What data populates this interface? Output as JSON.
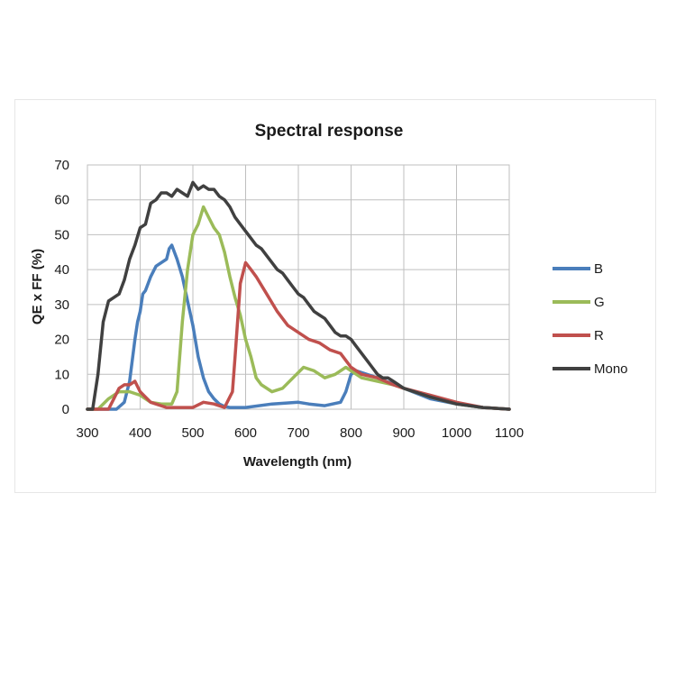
{
  "chart_data": {
    "type": "line",
    "title": "Spectral response",
    "xlabel": "Wavelength (nm)",
    "ylabel": "QE x FF (%)",
    "xlim": [
      300,
      1100
    ],
    "ylim": [
      0,
      70
    ],
    "xticks": [
      300,
      400,
      500,
      600,
      700,
      800,
      900,
      1000,
      1100
    ],
    "yticks": [
      0,
      10,
      20,
      30,
      40,
      50,
      60,
      70
    ],
    "grid": true,
    "legend_position": "right",
    "series": [
      {
        "name": "B",
        "color": "#4a7ebb",
        "x": [
          300,
          340,
          355,
          370,
          380,
          390,
          395,
          400,
          405,
          410,
          420,
          430,
          440,
          450,
          455,
          460,
          465,
          470,
          480,
          490,
          500,
          510,
          520,
          530,
          540,
          550,
          560,
          570,
          600,
          650,
          700,
          720,
          750,
          780,
          790,
          800,
          810,
          850,
          900,
          950,
          1000,
          1050,
          1100
        ],
        "y": [
          0,
          0,
          0,
          2,
          8,
          20,
          25,
          28,
          33,
          34,
          38,
          41,
          42,
          43,
          46,
          47,
          45,
          43,
          38,
          31,
          24,
          15,
          9,
          5,
          3,
          1.5,
          0.8,
          0.5,
          0.5,
          1.5,
          2,
          1.5,
          1,
          2,
          5,
          10,
          11,
          9,
          6,
          3,
          1.5,
          0.5,
          0
        ]
      },
      {
        "name": "G",
        "color": "#9bbb59",
        "x": [
          300,
          320,
          340,
          360,
          380,
          400,
          420,
          440,
          460,
          470,
          480,
          490,
          500,
          510,
          520,
          530,
          540,
          550,
          560,
          570,
          580,
          590,
          600,
          610,
          620,
          630,
          650,
          670,
          690,
          710,
          730,
          750,
          770,
          790,
          800,
          820,
          850,
          880,
          900,
          950,
          1000,
          1050,
          1100
        ],
        "y": [
          0,
          0,
          3,
          5,
          5,
          4,
          2,
          1.5,
          1.5,
          5,
          25,
          40,
          50,
          53,
          58,
          55,
          52,
          50,
          45,
          38,
          32,
          27,
          20,
          15,
          9,
          7,
          5,
          6,
          9,
          12,
          11,
          9,
          10,
          12,
          11,
          9,
          8,
          7,
          6,
          3.5,
          1.5,
          0.5,
          0
        ]
      },
      {
        "name": "R",
        "color": "#c0504d",
        "x": [
          300,
          340,
          350,
          360,
          370,
          380,
          390,
          400,
          420,
          450,
          480,
          500,
          520,
          540,
          560,
          575,
          580,
          590,
          600,
          610,
          620,
          640,
          660,
          680,
          700,
          720,
          740,
          760,
          780,
          800,
          820,
          850,
          880,
          900,
          950,
          1000,
          1050,
          1100
        ],
        "y": [
          0,
          0,
          3,
          6,
          7,
          7,
          8,
          5,
          2,
          0.5,
          0.5,
          0.5,
          2,
          1.5,
          0.5,
          5,
          15,
          36,
          42,
          40,
          38,
          33,
          28,
          24,
          22,
          20,
          19,
          17,
          16,
          12,
          10,
          9,
          7,
          6,
          4,
          2,
          0.5,
          0
        ]
      },
      {
        "name": "Mono",
        "color": "#404040",
        "x": [
          300,
          310,
          320,
          330,
          340,
          350,
          360,
          370,
          380,
          390,
          400,
          410,
          420,
          430,
          440,
          450,
          460,
          470,
          480,
          490,
          500,
          510,
          520,
          530,
          540,
          550,
          560,
          570,
          580,
          590,
          600,
          610,
          620,
          630,
          640,
          650,
          660,
          670,
          680,
          690,
          700,
          710,
          720,
          730,
          740,
          750,
          760,
          770,
          780,
          790,
          800,
          810,
          820,
          830,
          840,
          850,
          860,
          870,
          880,
          900,
          950,
          1000,
          1050,
          1100
        ],
        "y": [
          0,
          0,
          10,
          25,
          31,
          32,
          33,
          37,
          43,
          47,
          52,
          53,
          59,
          60,
          62,
          62,
          61,
          63,
          62,
          61,
          65,
          63,
          64,
          63,
          63,
          61,
          60,
          58,
          55,
          53,
          51,
          49,
          47,
          46,
          44,
          42,
          40,
          39,
          37,
          35,
          33,
          32,
          30,
          28,
          27,
          26,
          24,
          22,
          21,
          21,
          20,
          18,
          16,
          14,
          12,
          10,
          9,
          9,
          8,
          6,
          3.5,
          1.5,
          0.5,
          0
        ]
      }
    ]
  }
}
